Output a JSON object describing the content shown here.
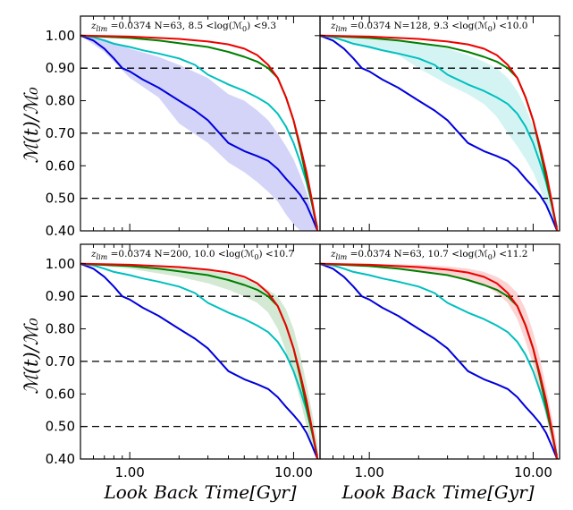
{
  "chart_data": {
    "type": "line",
    "xlabel": "Look Back Time[Gyr]",
    "ylabel": "ℳ(t)/ℳ₀",
    "xscale": "log",
    "xlim": [
      0.5,
      14.5
    ],
    "ylim": [
      0.4,
      1.06
    ],
    "xticks": [
      1.0,
      10.0
    ],
    "xtick_labels": [
      "1.00",
      "10.00"
    ],
    "yticks": [
      0.4,
      0.5,
      0.6,
      0.7,
      0.8,
      0.9,
      1.0
    ],
    "ytick_labels": [
      "0.40",
      "0.50",
      "0.60",
      "0.70",
      "0.80",
      "0.90",
      "1.00"
    ],
    "reference_lines": [
      0.9,
      0.7,
      0.5
    ],
    "grid": false,
    "colors": {
      "blue": "#0000dd",
      "cyan": "#00bfbf",
      "green": "#007f00",
      "red": "#ee0000"
    },
    "series": [
      {
        "color": "blue",
        "x": [
          0.5,
          0.6,
          0.7,
          0.8,
          0.9,
          1.0,
          1.2,
          1.5,
          2.0,
          2.5,
          3.0,
          4.0,
          5.0,
          6.0,
          7.0,
          8.0,
          9.0,
          10.0,
          11.0,
          12.0,
          13.0,
          14.0
        ],
        "y": [
          1.0,
          0.985,
          0.96,
          0.93,
          0.9,
          0.89,
          0.865,
          0.84,
          0.8,
          0.77,
          0.74,
          0.67,
          0.645,
          0.63,
          0.615,
          0.59,
          0.56,
          0.535,
          0.51,
          0.48,
          0.44,
          0.4
        ]
      },
      {
        "color": "cyan",
        "x": [
          0.5,
          0.6,
          0.7,
          0.8,
          1.0,
          1.2,
          1.5,
          2.0,
          2.5,
          3.0,
          4.0,
          5.0,
          6.0,
          7.0,
          8.0,
          9.0,
          10.0,
          11.0,
          12.0,
          13.0,
          14.0
        ],
        "y": [
          1.0,
          0.995,
          0.985,
          0.975,
          0.965,
          0.955,
          0.945,
          0.93,
          0.91,
          0.88,
          0.85,
          0.83,
          0.81,
          0.79,
          0.76,
          0.72,
          0.67,
          0.61,
          0.55,
          0.48,
          0.41
        ]
      },
      {
        "color": "green",
        "x": [
          0.5,
          1.0,
          1.5,
          2.0,
          3.0,
          4.0,
          5.0,
          6.0,
          7.0,
          8.0,
          9.0,
          10.0,
          11.0,
          12.0,
          13.0,
          14.0
        ],
        "y": [
          1.0,
          0.993,
          0.985,
          0.977,
          0.965,
          0.95,
          0.935,
          0.92,
          0.9,
          0.87,
          0.81,
          0.74,
          0.65,
          0.56,
          0.48,
          0.4
        ]
      },
      {
        "color": "red",
        "x": [
          0.5,
          1.0,
          2.0,
          3.0,
          4.0,
          5.0,
          6.0,
          7.0,
          8.0,
          9.0,
          10.0,
          11.0,
          12.0,
          13.0,
          14.0
        ],
        "y": [
          1.0,
          0.997,
          0.99,
          0.982,
          0.973,
          0.96,
          0.94,
          0.91,
          0.87,
          0.81,
          0.74,
          0.66,
          0.58,
          0.49,
          0.4
        ]
      }
    ],
    "panels": [
      {
        "annotation_parts": [
          "z",
          "lim",
          " =0.0374 N=63, 8.5 <log(ℳ",
          "0",
          ") <9.3"
        ],
        "band": {
          "color": "blue",
          "x": [
            0.5,
            0.7,
            1.0,
            1.5,
            2.0,
            3.0,
            4.0,
            5.0,
            6.0,
            7.0,
            8.0,
            9.0,
            10.0,
            11.0,
            12.0,
            13.0,
            14.0
          ],
          "lower": [
            1.0,
            0.95,
            0.87,
            0.81,
            0.73,
            0.67,
            0.61,
            0.58,
            0.55,
            0.52,
            0.49,
            0.45,
            0.42,
            0.4,
            0.4,
            0.4,
            0.4
          ],
          "upper": [
            1.0,
            0.99,
            0.96,
            0.935,
            0.91,
            0.87,
            0.82,
            0.8,
            0.77,
            0.74,
            0.7,
            0.66,
            0.62,
            0.57,
            0.52,
            0.46,
            0.42
          ]
        }
      },
      {
        "annotation_parts": [
          "z",
          "lim",
          " =0.0374 N=128, 9.3 <log(ℳ",
          "0",
          ") <10.0"
        ],
        "band": {
          "color": "cyan",
          "x": [
            0.5,
            0.7,
            1.0,
            1.5,
            2.0,
            3.0,
            4.0,
            5.0,
            6.0,
            7.0,
            8.0,
            9.0,
            10.0,
            11.0,
            12.0,
            13.0,
            14.0
          ],
          "lower": [
            1.0,
            0.985,
            0.96,
            0.94,
            0.9,
            0.85,
            0.82,
            0.79,
            0.75,
            0.7,
            0.66,
            0.62,
            0.58,
            0.53,
            0.48,
            0.43,
            0.4
          ],
          "upper": [
            1.0,
            0.998,
            0.993,
            0.985,
            0.975,
            0.96,
            0.94,
            0.92,
            0.9,
            0.87,
            0.83,
            0.78,
            0.72,
            0.65,
            0.57,
            0.49,
            0.42
          ]
        }
      },
      {
        "annotation_parts": [
          "z",
          "lim",
          " =0.0374 N=200, 10.0 <log(ℳ",
          "0",
          ") <10.7"
        ],
        "band": {
          "color": "green",
          "x": [
            0.5,
            1.0,
            2.0,
            3.0,
            4.0,
            5.0,
            6.0,
            7.0,
            8.0,
            9.0,
            10.0,
            11.0,
            12.0,
            13.0,
            14.0
          ],
          "lower": [
            1.0,
            0.985,
            0.96,
            0.94,
            0.92,
            0.9,
            0.88,
            0.85,
            0.8,
            0.73,
            0.66,
            0.58,
            0.5,
            0.43,
            0.4
          ],
          "upper": [
            1.0,
            0.997,
            0.99,
            0.98,
            0.97,
            0.955,
            0.94,
            0.92,
            0.9,
            0.86,
            0.8,
            0.72,
            0.63,
            0.54,
            0.45
          ]
        }
      },
      {
        "annotation_parts": [
          "z",
          "lim",
          " =0.0374 N=63, 10.7 <log(ℳ",
          "0",
          ") <11.2"
        ],
        "band": {
          "color": "red",
          "x": [
            0.5,
            1.0,
            2.0,
            3.0,
            4.0,
            5.0,
            6.0,
            7.0,
            8.0,
            9.0,
            10.0,
            11.0,
            12.0,
            13.0,
            14.0
          ],
          "lower": [
            1.0,
            0.99,
            0.98,
            0.965,
            0.95,
            0.935,
            0.91,
            0.88,
            0.83,
            0.76,
            0.69,
            0.61,
            0.53,
            0.45,
            0.4
          ],
          "upper": [
            1.0,
            1.0,
            0.997,
            0.992,
            0.985,
            0.975,
            0.96,
            0.94,
            0.91,
            0.86,
            0.79,
            0.71,
            0.62,
            0.53,
            0.44
          ]
        }
      }
    ]
  }
}
